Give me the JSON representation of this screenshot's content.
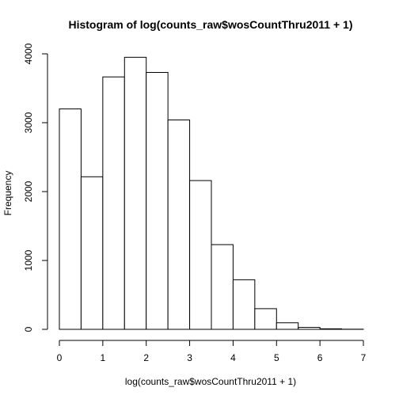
{
  "chart_data": {
    "type": "bar",
    "title": "Histogram of log(counts_raw$wosCountThru2011 + 1)",
    "xlabel": "log(counts_raw$wosCountThru2011 + 1)",
    "ylabel": "Frequency",
    "bin_width": 0.5,
    "bins": [
      {
        "start": 0.0,
        "end": 0.5,
        "value": 3200
      },
      {
        "start": 0.5,
        "end": 1.0,
        "value": 2215
      },
      {
        "start": 1.0,
        "end": 1.5,
        "value": 3665
      },
      {
        "start": 1.5,
        "end": 2.0,
        "value": 3950
      },
      {
        "start": 2.0,
        "end": 2.5,
        "value": 3730
      },
      {
        "start": 2.5,
        "end": 3.0,
        "value": 3040
      },
      {
        "start": 3.0,
        "end": 3.5,
        "value": 2160
      },
      {
        "start": 3.5,
        "end": 4.0,
        "value": 1230
      },
      {
        "start": 4.0,
        "end": 4.5,
        "value": 720
      },
      {
        "start": 4.5,
        "end": 5.0,
        "value": 300
      },
      {
        "start": 5.0,
        "end": 5.5,
        "value": 95
      },
      {
        "start": 5.5,
        "end": 6.0,
        "value": 28
      },
      {
        "start": 6.0,
        "end": 6.5,
        "value": 8
      },
      {
        "start": 6.5,
        "end": 7.0,
        "value": 2
      }
    ],
    "xlim": [
      0,
      7
    ],
    "ylim": [
      0,
      4000
    ],
    "x_ticks": [
      0,
      1,
      2,
      3,
      4,
      5,
      6,
      7
    ],
    "y_ticks": [
      0,
      1000,
      2000,
      3000,
      4000
    ],
    "grid": false,
    "legend": "none"
  }
}
